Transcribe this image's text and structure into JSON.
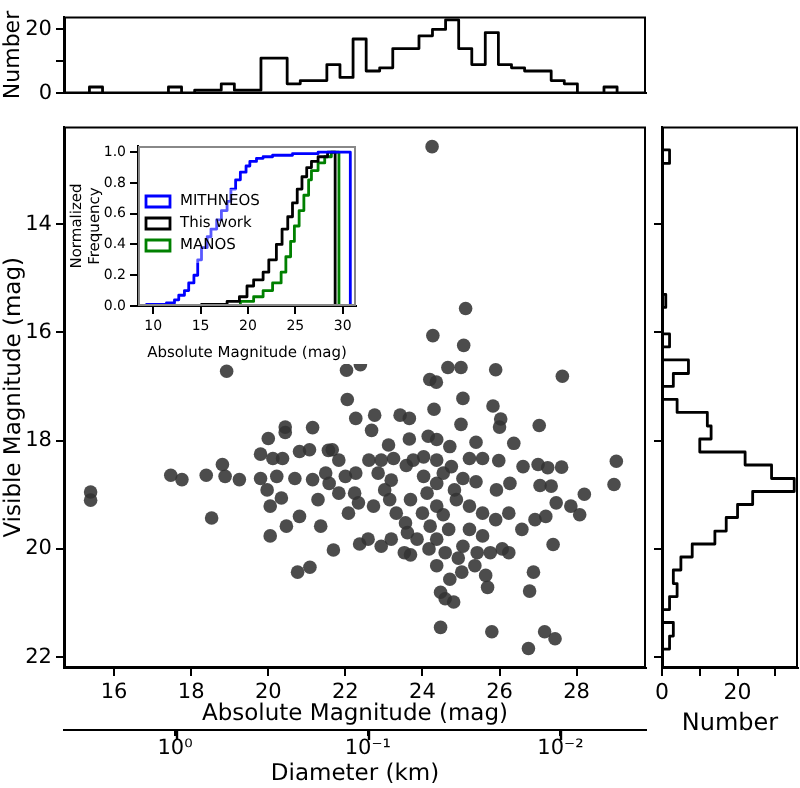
{
  "chart_data": [
    {
      "type": "histogram",
      "ylabel": "Number",
      "color": "#000000",
      "tick_labels": "y",
      "xlim": [
        14.7,
        29.8
      ],
      "ylim": [
        0,
        24
      ],
      "yticks": [
        0,
        {
          "value": 10,
          "label": null
        },
        20
      ],
      "bins": [
        15.36,
        15.7,
        16.04,
        16.38,
        16.73,
        17.07,
        17.41,
        17.75,
        18.09,
        18.44,
        18.78,
        19.12,
        19.46,
        19.81,
        20.15,
        20.49,
        20.83,
        21.18,
        21.52,
        21.86,
        22.2,
        22.54,
        22.89,
        23.23,
        23.57,
        23.91,
        24.26,
        24.6,
        24.94,
        25.28,
        25.63,
        25.97,
        26.31,
        26.65,
        26.99,
        27.34,
        27.68,
        28.02,
        28.36,
        28.71,
        29.05
      ],
      "values": [
        2,
        0,
        0,
        0,
        0,
        0,
        2,
        0,
        1,
        1,
        3,
        1,
        1,
        11,
        11,
        3,
        4,
        4,
        9,
        5,
        17,
        7,
        8,
        14,
        14,
        18,
        20,
        23,
        14,
        9,
        19,
        9,
        8,
        7,
        7,
        4,
        3,
        0,
        0,
        2
      ]
    },
    {
      "type": "scatter",
      "xlabel": "Absolute Magnitude (mag)",
      "ylabel": "Visible Magnitude (mag)",
      "x2label": "Diameter (km)",
      "color": "#333333",
      "marker": "circle",
      "log": "x2",
      "xlim": [
        14.7,
        29.8
      ],
      "xticks": [
        16,
        18,
        20,
        22,
        24,
        26,
        28
      ],
      "ylim": [
        22.2,
        12.2
      ],
      "yticks": [
        14,
        16,
        18,
        20,
        22
      ],
      "x2lim": [
        3.77,
        0.0036
      ],
      "x2ticks": [
        {
          "value": 1,
          "label": "10⁰"
        },
        {
          "value": 0.1,
          "label": "10⁻¹"
        },
        {
          "value": 0.01,
          "label": "10⁻²"
        }
      ],
      "x": [
        24.25,
        15.39,
        15.39,
        18.92,
        25.12,
        24.27,
        25.07,
        22.03,
        22.39,
        24.66,
        25.0,
        24.19,
        24.36,
        25.9,
        27.63,
        22.05,
        22.27,
        22.76,
        23.42,
        23.66,
        24.3,
        25.05,
        25.83,
        26.03,
        26.0,
        25.0,
        20.44,
        20.44,
        21.15,
        20.0,
        20.81,
        20.37,
        19.8,
        21.56,
        22.68,
        23.12,
        23.66,
        24.15,
        24.37,
        24.71,
        25.39,
        26.37,
        27.03,
        27.0,
        26.61,
        27.25,
        27.61,
        29.03,
        28.97,
        28.2,
        28.08,
        27.85,
        27.47,
        27.05,
        26.27,
        25.92,
        25.98,
        25.56,
        25.39,
        25.05,
        24.83,
        24.75,
        24.37,
        24.03,
        23.76,
        23.58,
        23.25,
        23.19,
        22.85,
        22.61,
        22.27,
        22.0,
        21.83,
        21.49,
        21.58,
        21.66,
        22.24,
        22.34,
        22.73,
        23.15,
        23.56,
        23.69,
        24.12,
        24.37,
        24.54,
        24.88,
        25.22,
        25.56,
        25.9,
        26.24,
        26.58,
        26.92,
        27.2,
        26.07,
        26.24,
        25.76,
        25.56,
        25.22,
        25.05,
        24.68,
        24.59,
        24.37,
        24.17,
        24.2,
        24.0,
        23.61,
        23.53,
        23.19,
        22.93,
        22.59,
        22.37,
        21.69,
        21.36,
        21.29,
        20.81,
        20.47,
        20.05,
        20.05,
        20.34,
        19.97,
        20.22,
        19.8,
        19.25,
        18.88,
        18.81,
        18.39,
        17.76,
        17.47,
        18.53,
        20.76,
        21.08,
        24.47,
        24.59,
        24.81,
        24.71,
        25.02,
        25.36,
        25.69,
        25.64,
        26.78,
        26.88,
        27.39,
        27.34,
        24.47,
        25.8,
        26.75,
        27.17,
        27.44,
        23.69,
        23.86,
        24.37,
        24.93,
        25.42,
        24.37,
        24.54,
        25.22,
        24.03,
        22.93,
        23.02,
        23.32,
        22.08,
        21.83,
        21.07,
        20.12,
        21.15,
        20.69
      ],
      "values": [
        12.57,
        18.95,
        19.1,
        16.72,
        15.56,
        16.06,
        16.24,
        16.7,
        16.6,
        16.65,
        16.65,
        16.87,
        16.92,
        16.69,
        16.81,
        17.24,
        17.59,
        17.53,
        17.53,
        17.59,
        17.42,
        17.22,
        17.36,
        17.6,
        17.75,
        17.7,
        17.75,
        17.85,
        17.76,
        17.96,
        18.2,
        18.33,
        18.25,
        18.18,
        17.81,
        18.08,
        17.97,
        17.92,
        17.98,
        18.11,
        18.03,
        18.05,
        17.72,
        18.44,
        18.48,
        18.5,
        18.49,
        18.38,
        18.81,
        18.99,
        19.37,
        19.21,
        19.15,
        18.83,
        18.79,
        18.91,
        18.37,
        18.33,
        18.76,
        18.7,
        18.91,
        18.48,
        18.36,
        18.3,
        18.36,
        18.46,
        18.33,
        18.73,
        18.6,
        18.36,
        18.6,
        18.66,
        18.36,
        18.6,
        18.79,
        18.17,
        18.97,
        19.15,
        19.21,
        19.09,
        19.52,
        19.09,
        18.97,
        19.21,
        19.37,
        19.09,
        19.21,
        19.34,
        19.46,
        19.34,
        19.64,
        19.46,
        19.4,
        20.0,
        20.07,
        20.07,
        19.76,
        19.64,
        19.95,
        19.64,
        20.07,
        19.82,
        20.0,
        19.58,
        19.34,
        19.7,
        20.07,
        19.82,
        19.95,
        19.82,
        19.91,
        20.02,
        19.58,
        19.09,
        19.4,
        19.58,
        19.76,
        19.21,
        19.06,
        18.91,
        18.66,
        18.7,
        18.72,
        18.66,
        18.44,
        18.64,
        18.72,
        18.64,
        19.43,
        20.43,
        20.34,
        20.8,
        20.92,
        20.98,
        20.56,
        20.43,
        20.31,
        20.71,
        20.49,
        20.78,
        20.43,
        19.92,
        18.84,
        21.45,
        21.53,
        21.84,
        21.53,
        21.66,
        20.11,
        19.82,
        20.31,
        20.17,
        20.07,
        18.79,
        18.6,
        18.33,
        18.66,
        18.36,
        18.91,
        19.34,
        19.34,
        18.97,
        18.17,
        18.33,
        18.72,
        18.7
      ]
    },
    {
      "type": "histogram",
      "orientation": "horizontal",
      "xlabel": "Number",
      "color": "#000000",
      "tick_labels": "x",
      "xlim": [
        0,
        36
      ],
      "xticks": [
        0,
        {
          "value": 10,
          "label": null
        },
        20,
        {
          "value": 30,
          "label": null
        }
      ],
      "ylim": [
        22.2,
        12.2
      ],
      "yticks": [
        {
          "value": 14,
          "label": null
        },
        {
          "value": 16,
          "label": null
        },
        {
          "value": 18,
          "label": null
        },
        {
          "value": 20,
          "label": null
        },
        {
          "value": 22,
          "label": null
        }
      ],
      "bins": [
        12.63,
        12.88,
        13.12,
        13.36,
        13.6,
        13.85,
        14.09,
        14.33,
        14.57,
        14.82,
        15.06,
        15.3,
        15.54,
        15.79,
        16.03,
        16.27,
        16.51,
        16.76,
        17.0,
        17.24,
        17.48,
        17.73,
        17.97,
        18.21,
        18.45,
        18.7,
        18.94,
        19.18,
        19.42,
        19.67,
        19.91,
        20.15,
        20.39,
        20.64,
        20.88,
        21.12,
        21.36,
        21.61,
        21.85
      ],
      "values": [
        2,
        0,
        0,
        0,
        0,
        0,
        0,
        0,
        0,
        0,
        0,
        1,
        0,
        0,
        2,
        0,
        7,
        3,
        0,
        4,
        12,
        13,
        10,
        22,
        29,
        35,
        24,
        20,
        17,
        14,
        8,
        5,
        3,
        4,
        2,
        0,
        3,
        2
      ]
    },
    {
      "type": "line",
      "xlabel": "Absolute Magnitude (mag)",
      "ylabel": "Normalized Frequency",
      "legend": "center left",
      "xlim": [
        8.4,
        31.4
      ],
      "xticks": [
        10,
        15,
        20,
        25,
        30
      ],
      "ylim": [
        0,
        1.04
      ],
      "yticks": [
        {
          "value": 0,
          "label": "0.0"
        },
        {
          "value": 0.2,
          "label": "0.2"
        },
        {
          "value": 0.4,
          "label": "0.4"
        },
        {
          "value": 0.6,
          "label": "0.6"
        },
        {
          "value": 0.8,
          "label": "0.8"
        },
        {
          "value": 1,
          "label": "1.0"
        }
      ],
      "series": [
        {
          "name": "MITHNEOS",
          "type": "step",
          "color": "#0000ff",
          "x": [
            9.3,
            11.4,
            12.25,
            12.7,
            13.3,
            13.75,
            14.3,
            14.7,
            15.1,
            15.7,
            16.1,
            16.7,
            17.2,
            17.8,
            18.2,
            18.7,
            19.2,
            19.8,
            20.2,
            20.9,
            21.6,
            22.6,
            24.7,
            27.4,
            30.1,
            30.8,
            30.8
          ],
          "values": [
            0,
            0.01,
            0.02,
            0.04,
            0.07,
            0.1,
            0.15,
            0.2,
            0.3,
            0.38,
            0.45,
            0.5,
            0.56,
            0.62,
            0.68,
            0.76,
            0.82,
            0.87,
            0.91,
            0.94,
            0.96,
            0.97,
            0.98,
            0.99,
            1.0,
            1.0,
            0
          ]
        },
        {
          "name": "This work",
          "type": "step",
          "color": "#000000",
          "x": [
            15.1,
            17.8,
            19.1,
            19.9,
            20.6,
            21.6,
            22.2,
            23.0,
            23.6,
            24.2,
            24.7,
            25.2,
            25.7,
            26.2,
            26.7,
            27.4,
            28.4,
            29.2,
            29.2
          ],
          "values": [
            0,
            0.01,
            0.03,
            0.06,
            0.13,
            0.17,
            0.22,
            0.3,
            0.4,
            0.5,
            0.58,
            0.67,
            0.76,
            0.84,
            0.9,
            0.94,
            0.97,
            1.0,
            0
          ]
        },
        {
          "name": "MANOS",
          "type": "step",
          "color": "#008000",
          "x": [
            19.2,
            20.6,
            21.6,
            22.6,
            23.5,
            24.0,
            24.5,
            24.9,
            25.4,
            25.9,
            26.4,
            26.7,
            27.4,
            28.1,
            28.8,
            29.6,
            29.6
          ],
          "values": [
            0,
            0.03,
            0.06,
            0.1,
            0.15,
            0.22,
            0.32,
            0.42,
            0.52,
            0.62,
            0.72,
            0.82,
            0.88,
            0.93,
            0.97,
            1.0,
            0
          ]
        }
      ]
    }
  ]
}
